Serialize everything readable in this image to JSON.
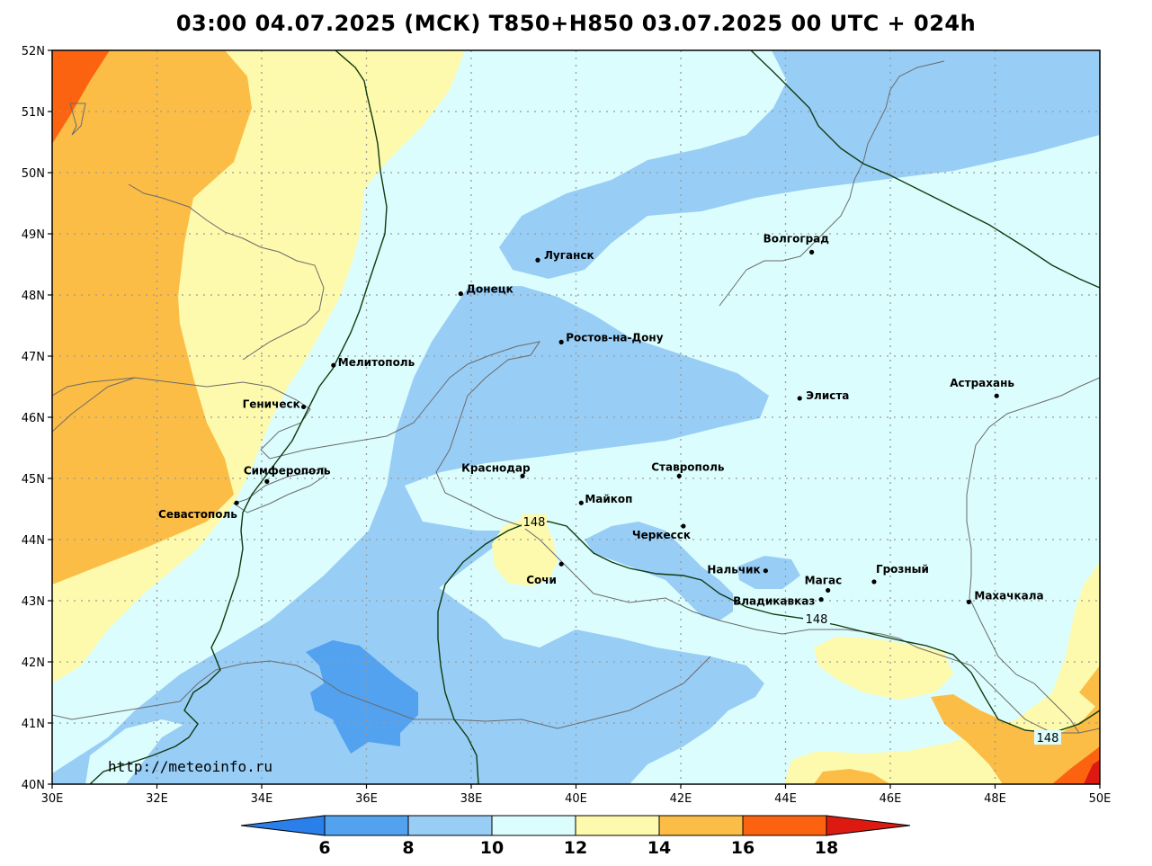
{
  "title": "03:00 04.07.2025 (МСК) T850+H850 03.07.2025 00 UTC + 024h",
  "credit": "http://meteoinfo.ru",
  "map": {
    "lon_range": [
      30,
      50
    ],
    "lat_range": [
      40,
      52
    ],
    "lon_ticks": [
      "30E",
      "32E",
      "34E",
      "36E",
      "38E",
      "40E",
      "42E",
      "44E",
      "46E",
      "48E",
      "50E"
    ],
    "lat_ticks": [
      "40N",
      "41N",
      "42N",
      "43N",
      "44N",
      "45N",
      "46N",
      "47N",
      "48N",
      "49N",
      "50N",
      "51N",
      "52N"
    ],
    "grid": true
  },
  "colorbar": {
    "levels": [
      "6",
      "8",
      "10",
      "12",
      "14",
      "16",
      "18"
    ],
    "colors": [
      "#2b7fea",
      "#52a2f0",
      "#98cdf6",
      "#dcfdfd",
      "#fdf9ad",
      "#fbbd45",
      "#fb6310",
      "#dd1a12"
    ]
  },
  "contour_label": "148",
  "cities": [
    {
      "name": "Луганск",
      "lon": 39.27,
      "lat": 48.57
    },
    {
      "name": "Донецк",
      "lon": 37.8,
      "lat": 48.02
    },
    {
      "name": "Волгоград",
      "lon": 44.5,
      "lat": 48.7
    },
    {
      "name": "Ростов-на-Дону",
      "lon": 39.72,
      "lat": 47.23
    },
    {
      "name": "Мелитополь",
      "lon": 35.37,
      "lat": 46.85
    },
    {
      "name": "Элиста",
      "lon": 44.27,
      "lat": 46.31
    },
    {
      "name": "Астрахань",
      "lon": 48.03,
      "lat": 46.35
    },
    {
      "name": "Геническ",
      "lon": 34.8,
      "lat": 46.17
    },
    {
      "name": "Симферополь",
      "lon": 34.1,
      "lat": 44.95
    },
    {
      "name": "Краснодар",
      "lon": 38.98,
      "lat": 45.04
    },
    {
      "name": "Ставрополь",
      "lon": 41.97,
      "lat": 45.04
    },
    {
      "name": "Майкоп",
      "lon": 40.1,
      "lat": 44.6
    },
    {
      "name": "Севастополь",
      "lon": 33.52,
      "lat": 44.6
    },
    {
      "name": "Черкесск",
      "lon": 42.05,
      "lat": 44.22
    },
    {
      "name": "Сочи",
      "lon": 39.72,
      "lat": 43.6
    },
    {
      "name": "Нальчик",
      "lon": 43.62,
      "lat": 43.49
    },
    {
      "name": "Магас",
      "lon": 44.81,
      "lat": 43.17
    },
    {
      "name": "Грозный",
      "lon": 45.69,
      "lat": 43.31
    },
    {
      "name": "Владикавказ",
      "lon": 44.68,
      "lat": 43.02
    },
    {
      "name": "Махачкала",
      "lon": 47.5,
      "lat": 42.98
    }
  ]
}
